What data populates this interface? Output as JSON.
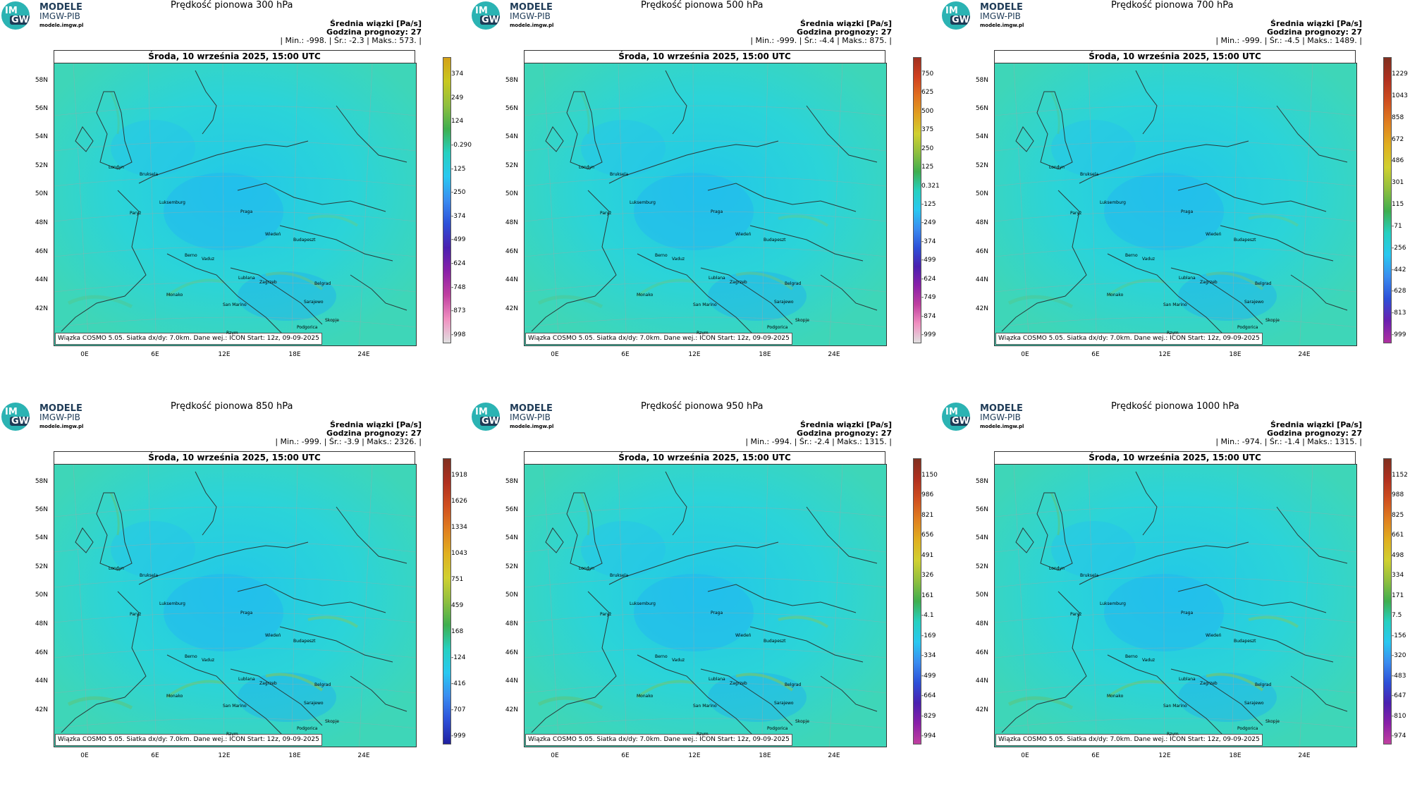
{
  "logo": {
    "circle_top": "IM",
    "circle_bottom": "GW",
    "line1": "MODELE",
    "line2": "IMGW-PIB",
    "line3": "modele.imgw.pl"
  },
  "header_label": "Średnia wiązki [Pa/s]",
  "forecast_hour": "Godzina prognozy: 27",
  "date_line": "Środa, 10 września 2025, 15:00 UTC",
  "footer": "Wiązka  COSMO 5.05. Siatka dx/dy: 7.0km. Dane wej.: ICON Start: 12z, 09-09-2025",
  "lat_labels": [
    "58N",
    "56N",
    "54N",
    "52N",
    "50N",
    "48N",
    "46N",
    "44N",
    "42N"
  ],
  "lon_labels": [
    "0E",
    "6E",
    "12E",
    "18E",
    "24E"
  ],
  "cities": [
    "Londyn",
    "Bruksela",
    "Luksemburg",
    "Paryż",
    "Praga",
    "Wiedeń",
    "Budapeszt",
    "Berno",
    "Vaduz",
    "Zagrzeb",
    "Lublana",
    "Monako",
    "San Marino",
    "Sarajewo",
    "Belgrad",
    "Rzym",
    "Skopje",
    "Podgorica"
  ],
  "panels": [
    {
      "title": "Prędkość pionowa 300 hPa",
      "stats": "| Min.:   -998. | Śr.:   -2.3 | Maks.:   573. |",
      "colorbar": [
        "374",
        "249",
        "124",
        "-0.290",
        "-125",
        "-250",
        "-374",
        "-499",
        "-624",
        "-748",
        "-873",
        "-998"
      ],
      "colors": [
        "#d4a017",
        "#c8c820",
        "#8fbf3f",
        "#3fae4f",
        "#26d0c0",
        "#29c8f0",
        "#3a8cf0",
        "#2d50d8",
        "#4a20b0",
        "#8a20a8",
        "#c040a0",
        "#f090c0",
        "#e0e0e0"
      ]
    },
    {
      "title": "Prędkość pionowa 500 hPa",
      "stats": "| Min.:   -999. | Śr.:   -4.4 | Maks.:   875. |",
      "colorbar": [
        "750",
        "625",
        "500",
        "375",
        "250",
        "125",
        "0.321",
        "-125",
        "-249",
        "-374",
        "-499",
        "-624",
        "-749",
        "-874",
        "-999"
      ],
      "colors": [
        "#a03020",
        "#d04020",
        "#e07020",
        "#e0a020",
        "#d0d030",
        "#8fbf3f",
        "#3fae4f",
        "#26d0c0",
        "#29c8f0",
        "#3a8cf0",
        "#2d50d8",
        "#4a20b0",
        "#8a20a8",
        "#c040a0",
        "#f090c0",
        "#e0e0e0"
      ]
    },
    {
      "title": "Prędkość pionowa 700 hPa",
      "stats": "| Min.:   -999. | Śr.:   -4.5 | Maks.:   1489. |",
      "colorbar": [
        "1229",
        "1043",
        "858",
        "672",
        "486",
        "301",
        "115",
        "-71",
        "-256",
        "-442",
        "-628",
        "-813",
        "-999"
      ],
      "colors": [
        "#803020",
        "#b03020",
        "#d05020",
        "#e08020",
        "#e0b020",
        "#d0d030",
        "#8fbf3f",
        "#3fae4f",
        "#26d0c0",
        "#29c8f0",
        "#3a8cf0",
        "#2d50d8",
        "#6a20b0",
        "#b030a0"
      ]
    },
    {
      "title": "Prędkość pionowa 850 hPa",
      "stats": "| Min.:   -999. | Śr.:   -3.9 | Maks.:   2326. |",
      "colorbar": [
        "1918",
        "1626",
        "1334",
        "1043",
        "751",
        "459",
        "168",
        "-124",
        "-416",
        "-707",
        "-999"
      ],
      "colors": [
        "#803020",
        "#b03020",
        "#d05020",
        "#e08020",
        "#e0b020",
        "#d0d030",
        "#8fbf3f",
        "#3fae4f",
        "#26d0c0",
        "#29c8f0",
        "#3a8cf0",
        "#2d50d8",
        "#2020a0"
      ]
    },
    {
      "title": "Prędkość pionowa 950 hPa",
      "stats": "| Min.:   -994. | Śr.:   -2.4 | Maks.:   1315. |",
      "colorbar": [
        "1150",
        "986",
        "821",
        "656",
        "491",
        "326",
        "161",
        "-4.1",
        "-169",
        "-334",
        "-499",
        "-664",
        "-829",
        "-994"
      ],
      "colors": [
        "#803020",
        "#b03020",
        "#d05020",
        "#e08020",
        "#e0b020",
        "#d0d030",
        "#8fbf3f",
        "#3fae4f",
        "#26d0c0",
        "#29c8f0",
        "#3a8cf0",
        "#2d50d8",
        "#4a20b0",
        "#8a20a8",
        "#c040a0"
      ]
    },
    {
      "title": "Prędkość pionowa 1000 hPa",
      "stats": "| Min.:   -974. | Śr.:   -1.4 | Maks.:   1315. |",
      "colorbar": [
        "1152",
        "988",
        "825",
        "661",
        "498",
        "334",
        "171",
        "7.5",
        "-156",
        "-320",
        "-483",
        "-647",
        "-810",
        "-974"
      ],
      "colors": [
        "#803020",
        "#b03020",
        "#d05020",
        "#e08020",
        "#e0b020",
        "#d0d030",
        "#8fbf3f",
        "#3fae4f",
        "#26d0c0",
        "#29c8f0",
        "#3a8cf0",
        "#2d50d8",
        "#4a20b0",
        "#8a20a8",
        "#c040a0"
      ]
    }
  ]
}
